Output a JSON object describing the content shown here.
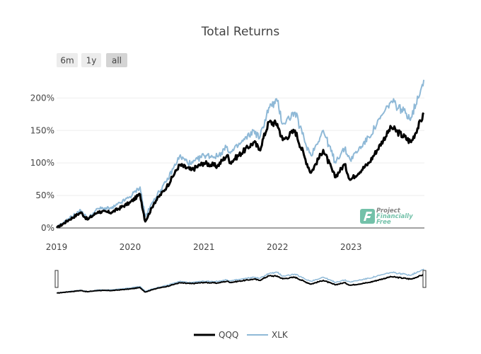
{
  "chart_data": {
    "type": "line",
    "title": "Total Returns",
    "range_selector": {
      "buttons": [
        {
          "label": "6m",
          "active": false
        },
        {
          "label": "1y",
          "active": false
        },
        {
          "label": "all",
          "active": true
        }
      ]
    },
    "x_ticks": [
      "2019",
      "2020",
      "2021",
      "2022",
      "2023"
    ],
    "x_range": [
      "2019-01-01",
      "2023-12-31"
    ],
    "y_ticks": [
      "0%",
      "50%",
      "100%",
      "150%",
      "200%"
    ],
    "ylim": [
      0,
      220
    ],
    "ylabel_unit": "%",
    "grid": true,
    "legend_position": "bottom-center",
    "rangeslider": true,
    "series": [
      {
        "name": "QQQ",
        "color": "#000000",
        "points": [
          [
            "2019-01-02",
            0
          ],
          [
            "2019-03-01",
            12
          ],
          [
            "2019-05-01",
            24
          ],
          [
            "2019-06-03",
            13
          ],
          [
            "2019-07-26",
            25
          ],
          [
            "2019-10-01",
            24
          ],
          [
            "2019-12-31",
            39
          ],
          [
            "2020-02-19",
            52
          ],
          [
            "2020-03-16",
            10
          ],
          [
            "2020-04-30",
            39
          ],
          [
            "2020-06-30",
            63
          ],
          [
            "2020-09-02",
            97
          ],
          [
            "2020-10-30",
            89
          ],
          [
            "2020-12-31",
            100
          ],
          [
            "2021-03-08",
            95
          ],
          [
            "2021-04-26",
            112
          ],
          [
            "2021-05-12",
            101
          ],
          [
            "2021-09-07",
            132
          ],
          [
            "2021-10-04",
            120
          ],
          [
            "2021-11-19",
            163
          ],
          [
            "2021-12-31",
            160
          ],
          [
            "2022-01-27",
            135
          ],
          [
            "2022-03-29",
            150
          ],
          [
            "2022-05-20",
            105
          ],
          [
            "2022-06-16",
            85
          ],
          [
            "2022-08-16",
            120
          ],
          [
            "2022-10-13",
            78
          ],
          [
            "2022-11-30",
            98
          ],
          [
            "2022-12-28",
            74
          ],
          [
            "2023-03-31",
            100
          ],
          [
            "2023-07-19",
            155
          ],
          [
            "2023-10-26",
            132
          ],
          [
            "2023-12-28",
            175
          ]
        ]
      },
      {
        "name": "XLK",
        "color": "#8fb9d7",
        "points": [
          [
            "2019-01-02",
            0
          ],
          [
            "2019-03-01",
            14
          ],
          [
            "2019-05-01",
            27
          ],
          [
            "2019-06-03",
            14
          ],
          [
            "2019-07-26",
            30
          ],
          [
            "2019-10-01",
            30
          ],
          [
            "2019-12-31",
            48
          ],
          [
            "2020-02-19",
            63
          ],
          [
            "2020-03-16",
            17
          ],
          [
            "2020-04-30",
            45
          ],
          [
            "2020-06-30",
            72
          ],
          [
            "2020-09-02",
            110
          ],
          [
            "2020-10-30",
            98
          ],
          [
            "2020-12-31",
            112
          ],
          [
            "2021-03-08",
            110
          ],
          [
            "2021-04-26",
            125
          ],
          [
            "2021-05-12",
            115
          ],
          [
            "2021-09-07",
            150
          ],
          [
            "2021-10-04",
            138
          ],
          [
            "2021-11-19",
            185
          ],
          [
            "2021-12-31",
            195
          ],
          [
            "2022-01-27",
            160
          ],
          [
            "2022-03-29",
            178
          ],
          [
            "2022-05-20",
            130
          ],
          [
            "2022-06-16",
            112
          ],
          [
            "2022-08-16",
            150
          ],
          [
            "2022-10-13",
            102
          ],
          [
            "2022-11-30",
            122
          ],
          [
            "2022-12-28",
            105
          ],
          [
            "2023-03-31",
            140
          ],
          [
            "2023-07-19",
            195
          ],
          [
            "2023-10-26",
            170
          ],
          [
            "2023-12-28",
            228
          ]
        ]
      }
    ]
  },
  "watermark": {
    "lines": [
      "Project",
      "Financially",
      "Free"
    ],
    "icon": "pff-logo-icon",
    "color": "#5bb79b"
  }
}
